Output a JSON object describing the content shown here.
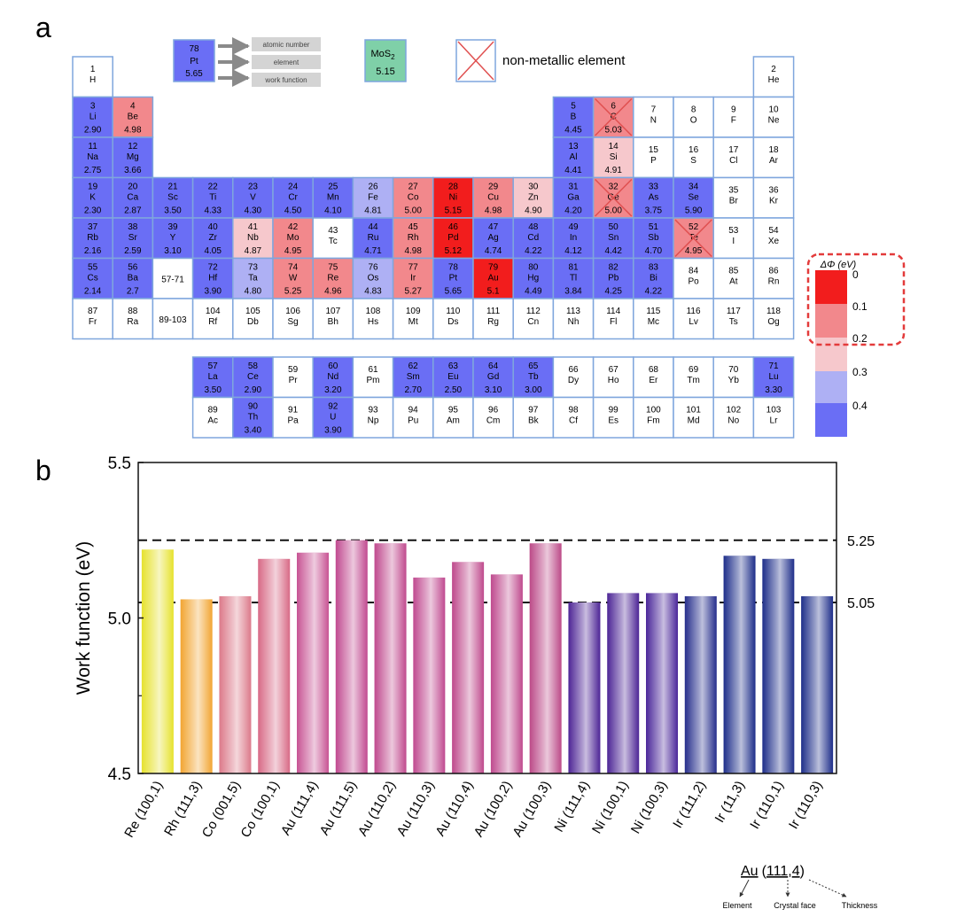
{
  "panel_a": {
    "label": "a",
    "key_box": {
      "number": "78",
      "symbol": "Pt",
      "wf": "5.65"
    },
    "key_labels": [
      "atomic number",
      "element",
      "work function"
    ],
    "mos2": {
      "name": "MoS",
      "sub": "2",
      "wf": "5.15"
    },
    "nonmetal_legend": "non-metallic element",
    "colorbar": {
      "title": "ΔΦ (eV)",
      "ticks": [
        "0",
        "0.1",
        "0.2",
        "0.3",
        "0.4"
      ]
    },
    "colors": {
      "blue": "#6a6ef5",
      "lightblue": "#aeb0f4",
      "pink": "#f6c8cc",
      "salmon": "#f2888c",
      "red": "#f21d1d",
      "border": "#7fa6dd",
      "mos2": "#7fd0a8",
      "cross": "#e05050",
      "dash": "#e33b3b"
    },
    "elements": [
      {
        "n": "1",
        "s": "H",
        "w": "",
        "c": "white",
        "r": 0,
        "col": 0
      },
      {
        "n": "2",
        "s": "He",
        "w": "",
        "c": "white",
        "r": 0,
        "col": 17
      },
      {
        "n": "3",
        "s": "Li",
        "w": "2.90",
        "c": "blue",
        "r": 1,
        "col": 0
      },
      {
        "n": "4",
        "s": "Be",
        "w": "4.98",
        "c": "salmon",
        "r": 1,
        "col": 1
      },
      {
        "n": "5",
        "s": "B",
        "w": "4.45",
        "c": "blue",
        "r": 1,
        "col": 12
      },
      {
        "n": "6",
        "s": "C",
        "w": "5.03",
        "c": "salmon",
        "r": 1,
        "col": 13,
        "x": 1
      },
      {
        "n": "7",
        "s": "N",
        "w": "",
        "c": "white",
        "r": 1,
        "col": 14
      },
      {
        "n": "8",
        "s": "O",
        "w": "",
        "c": "white",
        "r": 1,
        "col": 15
      },
      {
        "n": "9",
        "s": "F",
        "w": "",
        "c": "white",
        "r": 1,
        "col": 16
      },
      {
        "n": "10",
        "s": "Ne",
        "w": "",
        "c": "white",
        "r": 1,
        "col": 17
      },
      {
        "n": "11",
        "s": "Na",
        "w": "2.75",
        "c": "blue",
        "r": 2,
        "col": 0
      },
      {
        "n": "12",
        "s": "Mg",
        "w": "3.66",
        "c": "blue",
        "r": 2,
        "col": 1
      },
      {
        "n": "13",
        "s": "Al",
        "w": "4.41",
        "c": "blue",
        "r": 2,
        "col": 12
      },
      {
        "n": "14",
        "s": "Si",
        "w": "4.91",
        "c": "pink",
        "r": 2,
        "col": 13
      },
      {
        "n": "15",
        "s": "P",
        "w": "",
        "c": "white",
        "r": 2,
        "col": 14
      },
      {
        "n": "16",
        "s": "S",
        "w": "",
        "c": "white",
        "r": 2,
        "col": 15
      },
      {
        "n": "17",
        "s": "Cl",
        "w": "",
        "c": "white",
        "r": 2,
        "col": 16
      },
      {
        "n": "18",
        "s": "Ar",
        "w": "",
        "c": "white",
        "r": 2,
        "col": 17
      },
      {
        "n": "19",
        "s": "K",
        "w": "2.30",
        "c": "blue",
        "r": 3,
        "col": 0
      },
      {
        "n": "20",
        "s": "Ca",
        "w": "2.87",
        "c": "blue",
        "r": 3,
        "col": 1
      },
      {
        "n": "21",
        "s": "Sc",
        "w": "3.50",
        "c": "blue",
        "r": 3,
        "col": 2
      },
      {
        "n": "22",
        "s": "Ti",
        "w": "4.33",
        "c": "blue",
        "r": 3,
        "col": 3
      },
      {
        "n": "23",
        "s": "V",
        "w": "4.30",
        "c": "blue",
        "r": 3,
        "col": 4
      },
      {
        "n": "24",
        "s": "Cr",
        "w": "4.50",
        "c": "blue",
        "r": 3,
        "col": 5
      },
      {
        "n": "25",
        "s": "Mn",
        "w": "4.10",
        "c": "blue",
        "r": 3,
        "col": 6
      },
      {
        "n": "26",
        "s": "Fe",
        "w": "4.81",
        "c": "lightblue",
        "r": 3,
        "col": 7
      },
      {
        "n": "27",
        "s": "Co",
        "w": "5.00",
        "c": "salmon",
        "r": 3,
        "col": 8
      },
      {
        "n": "28",
        "s": "Ni",
        "w": "5.15",
        "c": "red",
        "r": 3,
        "col": 9
      },
      {
        "n": "29",
        "s": "Cu",
        "w": "4.98",
        "c": "salmon",
        "r": 3,
        "col": 10
      },
      {
        "n": "30",
        "s": "Zn",
        "w": "4.90",
        "c": "pink",
        "r": 3,
        "col": 11
      },
      {
        "n": "31",
        "s": "Ga",
        "w": "4.20",
        "c": "blue",
        "r": 3,
        "col": 12
      },
      {
        "n": "32",
        "s": "Ge",
        "w": "5.00",
        "c": "salmon",
        "r": 3,
        "col": 13,
        "x": 1
      },
      {
        "n": "33",
        "s": "As",
        "w": "3.75",
        "c": "blue",
        "r": 3,
        "col": 14
      },
      {
        "n": "34",
        "s": "Se",
        "w": "5.90",
        "c": "blue",
        "r": 3,
        "col": 15
      },
      {
        "n": "35",
        "s": "Br",
        "w": "",
        "c": "white",
        "r": 3,
        "col": 16
      },
      {
        "n": "36",
        "s": "Kr",
        "w": "",
        "c": "white",
        "r": 3,
        "col": 17
      },
      {
        "n": "37",
        "s": "Rb",
        "w": "2.16",
        "c": "blue",
        "r": 4,
        "col": 0
      },
      {
        "n": "38",
        "s": "Sr",
        "w": "2.59",
        "c": "blue",
        "r": 4,
        "col": 1
      },
      {
        "n": "39",
        "s": "Y",
        "w": "3.10",
        "c": "blue",
        "r": 4,
        "col": 2
      },
      {
        "n": "40",
        "s": "Zr",
        "w": "4.05",
        "c": "blue",
        "r": 4,
        "col": 3
      },
      {
        "n": "41",
        "s": "Nb",
        "w": "4.87",
        "c": "pink",
        "r": 4,
        "col": 4
      },
      {
        "n": "42",
        "s": "Mo",
        "w": "4.95",
        "c": "salmon",
        "r": 4,
        "col": 5
      },
      {
        "n": "43",
        "s": "Tc",
        "w": "",
        "c": "white",
        "r": 4,
        "col": 6
      },
      {
        "n": "44",
        "s": "Ru",
        "w": "4.71",
        "c": "blue",
        "r": 4,
        "col": 7
      },
      {
        "n": "45",
        "s": "Rh",
        "w": "4.98",
        "c": "salmon",
        "r": 4,
        "col": 8
      },
      {
        "n": "46",
        "s": "Pd",
        "w": "5.12",
        "c": "red",
        "r": 4,
        "col": 9
      },
      {
        "n": "47",
        "s": "Ag",
        "w": "4.74",
        "c": "blue",
        "r": 4,
        "col": 10
      },
      {
        "n": "48",
        "s": "Cd",
        "w": "4.22",
        "c": "blue",
        "r": 4,
        "col": 11
      },
      {
        "n": "49",
        "s": "In",
        "w": "4.12",
        "c": "blue",
        "r": 4,
        "col": 12
      },
      {
        "n": "50",
        "s": "Sn",
        "w": "4.42",
        "c": "blue",
        "r": 4,
        "col": 13
      },
      {
        "n": "51",
        "s": "Sb",
        "w": "4.70",
        "c": "blue",
        "r": 4,
        "col": 14
      },
      {
        "n": "52",
        "s": "Te",
        "w": "4.95",
        "c": "salmon",
        "r": 4,
        "col": 15,
        "x": 1
      },
      {
        "n": "53",
        "s": "I",
        "w": "",
        "c": "white",
        "r": 4,
        "col": 16
      },
      {
        "n": "54",
        "s": "Xe",
        "w": "",
        "c": "white",
        "r": 4,
        "col": 17
      },
      {
        "n": "55",
        "s": "Cs",
        "w": "2.14",
        "c": "blue",
        "r": 5,
        "col": 0
      },
      {
        "n": "56",
        "s": "Ba",
        "w": "2.7",
        "c": "blue",
        "r": 5,
        "col": 1
      },
      {
        "n": "57-71",
        "s": "",
        "w": "",
        "c": "white",
        "r": 5,
        "col": 2,
        "range": 1
      },
      {
        "n": "72",
        "s": "Hf",
        "w": "3.90",
        "c": "blue",
        "r": 5,
        "col": 3
      },
      {
        "n": "73",
        "s": "Ta",
        "w": "4.80",
        "c": "lightblue",
        "r": 5,
        "col": 4
      },
      {
        "n": "74",
        "s": "W",
        "w": "5.25",
        "c": "salmon",
        "r": 5,
        "col": 5
      },
      {
        "n": "75",
        "s": "Re",
        "w": "4.96",
        "c": "salmon",
        "r": 5,
        "col": 6
      },
      {
        "n": "76",
        "s": "Os",
        "w": "4.83",
        "c": "lightblue",
        "r": 5,
        "col": 7
      },
      {
        "n": "77",
        "s": "Ir",
        "w": "5.27",
        "c": "salmon",
        "r": 5,
        "col": 8
      },
      {
        "n": "78",
        "s": "Pt",
        "w": "5.65",
        "c": "blue",
        "r": 5,
        "col": 9
      },
      {
        "n": "79",
        "s": "Au",
        "w": "5.1",
        "c": "red",
        "r": 5,
        "col": 10
      },
      {
        "n": "80",
        "s": "Hg",
        "w": "4.49",
        "c": "blue",
        "r": 5,
        "col": 11
      },
      {
        "n": "81",
        "s": "Tl",
        "w": "3.84",
        "c": "blue",
        "r": 5,
        "col": 12
      },
      {
        "n": "82",
        "s": "Pb",
        "w": "4.25",
        "c": "blue",
        "r": 5,
        "col": 13
      },
      {
        "n": "83",
        "s": "Bi",
        "w": "4.22",
        "c": "blue",
        "r": 5,
        "col": 14
      },
      {
        "n": "84",
        "s": "Po",
        "w": "",
        "c": "white",
        "r": 5,
        "col": 15
      },
      {
        "n": "85",
        "s": "At",
        "w": "",
        "c": "white",
        "r": 5,
        "col": 16
      },
      {
        "n": "86",
        "s": "Rn",
        "w": "",
        "c": "white",
        "r": 5,
        "col": 17
      },
      {
        "n": "87",
        "s": "Fr",
        "w": "",
        "c": "white",
        "r": 6,
        "col": 0
      },
      {
        "n": "88",
        "s": "Ra",
        "w": "",
        "c": "white",
        "r": 6,
        "col": 1
      },
      {
        "n": "89-103",
        "s": "",
        "w": "",
        "c": "white",
        "r": 6,
        "col": 2,
        "range": 1
      },
      {
        "n": "104",
        "s": "Rf",
        "w": "",
        "c": "white",
        "r": 6,
        "col": 3
      },
      {
        "n": "105",
        "s": "Db",
        "w": "",
        "c": "white",
        "r": 6,
        "col": 4
      },
      {
        "n": "106",
        "s": "Sg",
        "w": "",
        "c": "white",
        "r": 6,
        "col": 5
      },
      {
        "n": "107",
        "s": "Bh",
        "w": "",
        "c": "white",
        "r": 6,
        "col": 6
      },
      {
        "n": "108",
        "s": "Hs",
        "w": "",
        "c": "white",
        "r": 6,
        "col": 7
      },
      {
        "n": "109",
        "s": "Mt",
        "w": "",
        "c": "white",
        "r": 6,
        "col": 8
      },
      {
        "n": "110",
        "s": "Ds",
        "w": "",
        "c": "white",
        "r": 6,
        "col": 9
      },
      {
        "n": "111",
        "s": "Rg",
        "w": "",
        "c": "white",
        "r": 6,
        "col": 10
      },
      {
        "n": "112",
        "s": "Cn",
        "w": "",
        "c": "white",
        "r": 6,
        "col": 11
      },
      {
        "n": "113",
        "s": "Nh",
        "w": "",
        "c": "white",
        "r": 6,
        "col": 12
      },
      {
        "n": "114",
        "s": "Fl",
        "w": "",
        "c": "white",
        "r": 6,
        "col": 13
      },
      {
        "n": "115",
        "s": "Mc",
        "w": "",
        "c": "white",
        "r": 6,
        "col": 14
      },
      {
        "n": "116",
        "s": "Lv",
        "w": "",
        "c": "white",
        "r": 6,
        "col": 15
      },
      {
        "n": "117",
        "s": "Ts",
        "w": "",
        "c": "white",
        "r": 6,
        "col": 16
      },
      {
        "n": "118",
        "s": "Og",
        "w": "",
        "c": "white",
        "r": 6,
        "col": 17
      },
      {
        "n": "57",
        "s": "La",
        "w": "3.50",
        "c": "blue",
        "r": 7,
        "col": 3
      },
      {
        "n": "58",
        "s": "Ce",
        "w": "2.90",
        "c": "blue",
        "r": 7,
        "col": 4
      },
      {
        "n": "59",
        "s": "Pr",
        "w": "",
        "c": "white",
        "r": 7,
        "col": 5
      },
      {
        "n": "60",
        "s": "Nd",
        "w": "3.20",
        "c": "blue",
        "r": 7,
        "col": 6
      },
      {
        "n": "61",
        "s": "Pm",
        "w": "",
        "c": "white",
        "r": 7,
        "col": 7
      },
      {
        "n": "62",
        "s": "Sm",
        "w": "2.70",
        "c": "blue",
        "r": 7,
        "col": 8
      },
      {
        "n": "63",
        "s": "Eu",
        "w": "2.50",
        "c": "blue",
        "r": 7,
        "col": 9
      },
      {
        "n": "64",
        "s": "Gd",
        "w": "3.10",
        "c": "blue",
        "r": 7,
        "col": 10
      },
      {
        "n": "65",
        "s": "Tb",
        "w": "3.00",
        "c": "blue",
        "r": 7,
        "col": 11
      },
      {
        "n": "66",
        "s": "Dy",
        "w": "",
        "c": "white",
        "r": 7,
        "col": 12
      },
      {
        "n": "67",
        "s": "Ho",
        "w": "",
        "c": "white",
        "r": 7,
        "col": 13
      },
      {
        "n": "68",
        "s": "Er",
        "w": "",
        "c": "white",
        "r": 7,
        "col": 14
      },
      {
        "n": "69",
        "s": "Tm",
        "w": "",
        "c": "white",
        "r": 7,
        "col": 15
      },
      {
        "n": "70",
        "s": "Yb",
        "w": "",
        "c": "white",
        "r": 7,
        "col": 16
      },
      {
        "n": "71",
        "s": "Lu",
        "w": "3.30",
        "c": "blue",
        "r": 7,
        "col": 17
      },
      {
        "n": "89",
        "s": "Ac",
        "w": "",
        "c": "white",
        "r": 8,
        "col": 3
      },
      {
        "n": "90",
        "s": "Th",
        "w": "3.40",
        "c": "blue",
        "r": 8,
        "col": 4
      },
      {
        "n": "91",
        "s": "Pa",
        "w": "",
        "c": "white",
        "r": 8,
        "col": 5
      },
      {
        "n": "92",
        "s": "U",
        "w": "3.90",
        "c": "blue",
        "r": 8,
        "col": 6
      },
      {
        "n": "93",
        "s": "Np",
        "w": "",
        "c": "white",
        "r": 8,
        "col": 7
      },
      {
        "n": "94",
        "s": "Pu",
        "w": "",
        "c": "white",
        "r": 8,
        "col": 8
      },
      {
        "n": "95",
        "s": "Am",
        "w": "",
        "c": "white",
        "r": 8,
        "col": 9
      },
      {
        "n": "96",
        "s": "Cm",
        "w": "",
        "c": "white",
        "r": 8,
        "col": 10
      },
      {
        "n": "97",
        "s": "Bk",
        "w": "",
        "c": "white",
        "r": 8,
        "col": 11
      },
      {
        "n": "98",
        "s": "Cf",
        "w": "",
        "c": "white",
        "r": 8,
        "col": 12
      },
      {
        "n": "99",
        "s": "Es",
        "w": "",
        "c": "white",
        "r": 8,
        "col": 13
      },
      {
        "n": "100",
        "s": "Fm",
        "w": "",
        "c": "white",
        "r": 8,
        "col": 14
      },
      {
        "n": "101",
        "s": "Md",
        "w": "",
        "c": "white",
        "r": 8,
        "col": 15
      },
      {
        "n": "102",
        "s": "No",
        "w": "",
        "c": "white",
        "r": 8,
        "col": 16
      },
      {
        "n": "103",
        "s": "Lr",
        "w": "",
        "c": "white",
        "r": 8,
        "col": 17
      }
    ]
  },
  "chart_data": {
    "type": "bar",
    "label": "b",
    "title": "",
    "xlabel": "",
    "ylabel": "Work function (eV)",
    "ylim": [
      4.5,
      5.5
    ],
    "yticks": [
      "4.5",
      "5.0",
      "5.5"
    ],
    "categories": [
      "Re (100,1)",
      "Rh (111,3)",
      "Co (001,5)",
      "Co (100,1)",
      "Au (111,4)",
      "Au (111,5)",
      "Au (110,2)",
      "Au (110,3)",
      "Au (110,4)",
      "Au (100,2)",
      "Au (100,3)",
      "Ni (111,4)",
      "Ni (100,1)",
      "Ni (100,3)",
      "Ir (111,2)",
      "Ir (11,3)",
      "Ir (110,1)",
      "Ir (110,3)"
    ],
    "values": [
      5.22,
      5.06,
      5.07,
      5.19,
      5.21,
      5.25,
      5.24,
      5.13,
      5.18,
      5.14,
      5.24,
      5.05,
      5.08,
      5.08,
      5.07,
      5.2,
      5.19,
      5.07
    ],
    "bar_colors": [
      "#e6e22e",
      "#f2a532",
      "#dc7a8a",
      "#d86a86",
      "#c85494",
      "#c14a90",
      "#c04a8e",
      "#c04a90",
      "#bf4a8c",
      "#bf4a8e",
      "#bc4a88",
      "#4d2596",
      "#4d2596",
      "#4b279a",
      "#262e8c",
      "#1e2e8a",
      "#1e2e8a",
      "#1e2e8a"
    ],
    "reference_lines": [
      {
        "value": 5.25,
        "label": "5.25"
      },
      {
        "value": 5.05,
        "label": "5.05"
      }
    ],
    "naming_key": {
      "element": "Au",
      "open": "(",
      "face": "111",
      "comma": ",",
      "thickness": "4",
      "close": ")",
      "labels": [
        "Element",
        "Crystal face",
        "Thickness"
      ]
    }
  }
}
